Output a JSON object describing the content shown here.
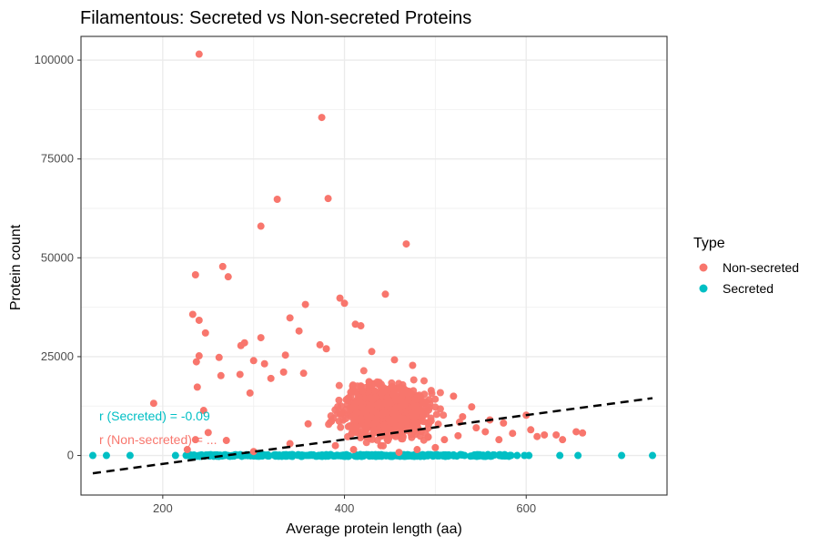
{
  "chart_data": {
    "type": "scatter",
    "title": "Filamentous: Secreted vs Non-secreted Proteins",
    "xlabel": "Average protein length (aa)",
    "ylabel": "Protein count",
    "xlim": [
      110,
      755
    ],
    "ylim": [
      -10000,
      106000
    ],
    "x_ticks": [
      200,
      400,
      600
    ],
    "y_ticks": [
      0,
      25000,
      50000,
      75000,
      100000
    ],
    "y_tick_labels": [
      "0",
      "25000",
      "50000",
      "75000",
      "100000"
    ],
    "x_tick_labels": [
      "200",
      "400",
      "600"
    ],
    "grid": true,
    "legend": {
      "title": "Type",
      "position": "right",
      "entries": [
        {
          "label": "Non-secreted",
          "color": "#F8766D"
        },
        {
          "label": "Secreted",
          "color": "#00BFC4"
        }
      ]
    },
    "series": [
      {
        "name": "Non-secreted",
        "color": "#F8766D",
        "points": [
          [
            240,
            101500
          ],
          [
            375,
            85500
          ],
          [
            382,
            65000
          ],
          [
            326,
            64800
          ],
          [
            308,
            58000
          ],
          [
            468,
            53500
          ],
          [
            266,
            47800
          ],
          [
            236,
            45700
          ],
          [
            272,
            45200
          ],
          [
            445,
            40800
          ],
          [
            357,
            38200
          ],
          [
            395,
            39800
          ],
          [
            400,
            38500
          ],
          [
            233,
            35700
          ],
          [
            240,
            34200
          ],
          [
            340,
            34800
          ],
          [
            412,
            33200
          ],
          [
            350,
            31500
          ],
          [
            418,
            32800
          ],
          [
            247,
            31000
          ],
          [
            308,
            29800
          ],
          [
            290,
            28500
          ],
          [
            286,
            27800
          ],
          [
            373,
            28000
          ],
          [
            380,
            27000
          ],
          [
            240,
            25200
          ],
          [
            262,
            24800
          ],
          [
            237,
            23700
          ],
          [
            312,
            23200
          ],
          [
            300,
            24000
          ],
          [
            335,
            25400
          ],
          [
            430,
            26300
          ],
          [
            455,
            24200
          ],
          [
            475,
            22800
          ],
          [
            190,
            13200
          ],
          [
            238,
            17300
          ],
          [
            250,
            5800
          ],
          [
            236,
            4000
          ],
          [
            227,
            1500
          ],
          [
            245,
            11400
          ],
          [
            264,
            20200
          ],
          [
            285,
            20500
          ],
          [
            296,
            15800
          ],
          [
            319,
            19500
          ],
          [
            333,
            21100
          ],
          [
            355,
            20800
          ],
          [
            520,
            15000
          ],
          [
            540,
            12300
          ],
          [
            560,
            9000
          ],
          [
            575,
            8200
          ],
          [
            600,
            10200
          ],
          [
            605,
            6500
          ],
          [
            612,
            4800
          ],
          [
            620,
            5200
          ],
          [
            633,
            5200
          ],
          [
            640,
            4000
          ],
          [
            655,
            6000
          ],
          [
            662,
            5700
          ],
          [
            570,
            4000
          ],
          [
            585,
            5600
          ],
          [
            530,
            9800
          ],
          [
            545,
            7000
          ],
          [
            555,
            6000
          ],
          [
            510,
            4000
          ],
          [
            525,
            5000
          ],
          [
            270,
            3800
          ],
          [
            300,
            1000
          ],
          [
            340,
            3000
          ],
          [
            360,
            8000
          ],
          [
            390,
            2500
          ],
          [
            410,
            1500
          ],
          [
            440,
            2500
          ],
          [
            460,
            800
          ],
          [
            480,
            1500
          ],
          [
            500,
            2000
          ]
        ],
        "cluster": {
          "center": [
            445,
            11500
          ],
          "spread": [
            40,
            5500
          ],
          "count": 900
        }
      },
      {
        "name": "Secreted",
        "color": "#00BFC4",
        "points": [
          [
            123,
            0
          ],
          [
            138,
            0
          ],
          [
            164,
            0
          ],
          [
            214,
            0
          ],
          [
            245,
            0
          ],
          [
            260,
            0
          ],
          [
            590,
            0
          ],
          [
            598,
            0
          ],
          [
            603,
            0
          ],
          [
            637,
            0
          ],
          [
            657,
            0
          ],
          [
            705,
            0
          ],
          [
            739,
            0
          ]
        ],
        "band": {
          "x_range": [
            225,
            585
          ],
          "y": 0,
          "count": 380
        }
      }
    ],
    "trend_line": {
      "x": [
        123,
        739
      ],
      "y": [
        -4500,
        14500
      ],
      "style": "dashed",
      "color": "#000000"
    },
    "annotations": [
      {
        "text": "r (Secreted) = -0.09",
        "color": "#00BFC4",
        "x": 130,
        "y": 10000
      },
      {
        "text": "r (Non-secreted) = ...",
        "color": "#F8766D",
        "x": 130,
        "y": 4000
      }
    ]
  }
}
